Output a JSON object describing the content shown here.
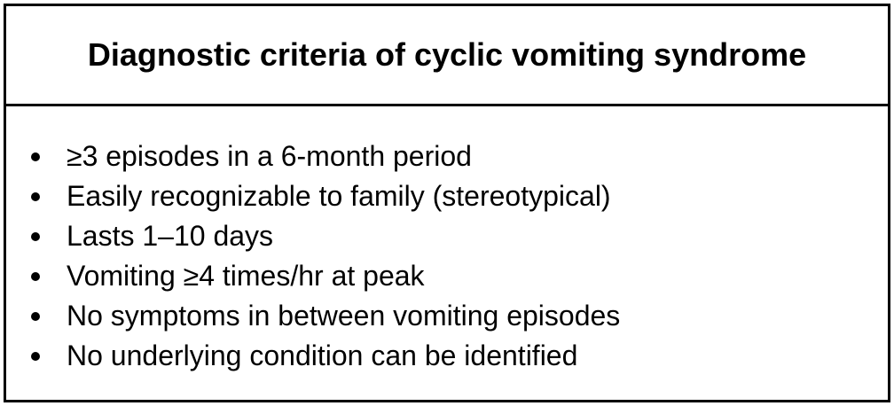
{
  "box": {
    "title": "Diagnostic criteria of cyclic vomiting syndrome",
    "items": [
      "≥3 episodes in a 6-month period",
      "Easily recognizable to family (stereotypical)",
      "Lasts 1–10 days",
      "Vomiting ≥4 times/hr at peak",
      "No symptoms in between vomiting episodes",
      "No underlying condition can be identified"
    ]
  }
}
